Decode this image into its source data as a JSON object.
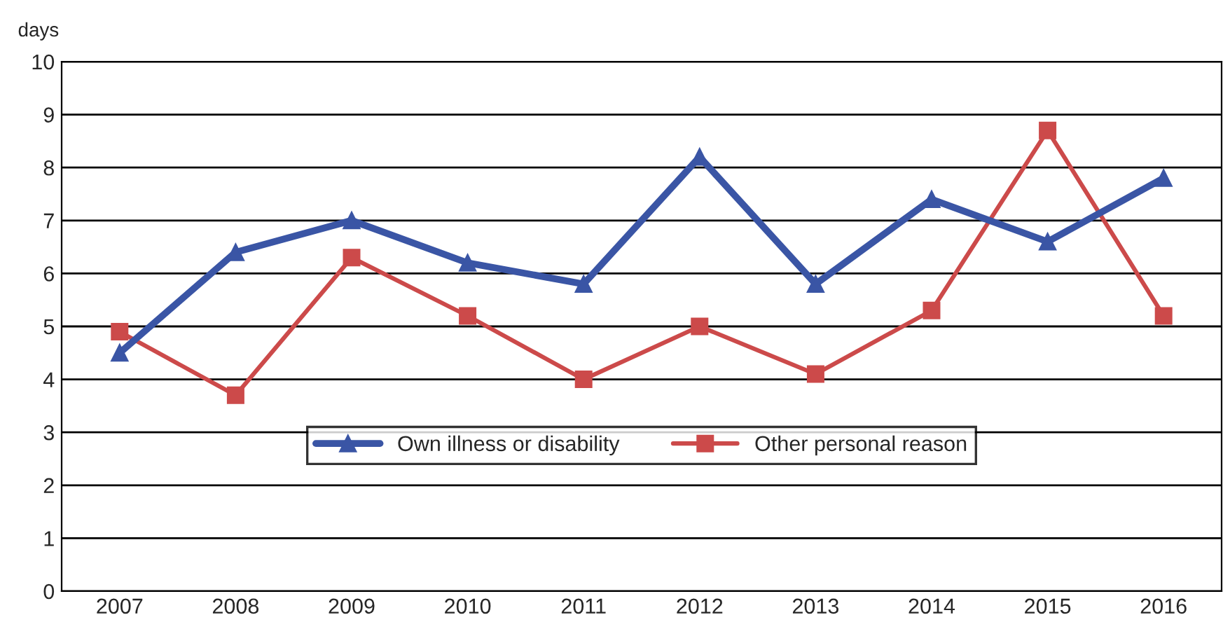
{
  "chart_data": {
    "type": "line",
    "ylabel": "days",
    "categories": [
      "2007",
      "2008",
      "2009",
      "2010",
      "2011",
      "2012",
      "2013",
      "2014",
      "2015",
      "2016"
    ],
    "series": [
      {
        "name": "Own illness or disability",
        "color": "#3a55a5",
        "marker": "triangle",
        "values": [
          4.5,
          6.4,
          7.0,
          6.2,
          5.8,
          8.2,
          5.8,
          7.4,
          6.6,
          7.8
        ]
      },
      {
        "name": "Other personal reason",
        "color": "#cc4a4a",
        "marker": "square",
        "values": [
          4.9,
          3.7,
          6.3,
          5.2,
          4.0,
          5.0,
          4.1,
          5.3,
          8.7,
          5.2
        ]
      }
    ],
    "ylim": [
      0,
      10
    ],
    "yticks": [
      0,
      1,
      2,
      3,
      4,
      5,
      6,
      7,
      8,
      9,
      10
    ],
    "grid": "y",
    "legend": "bottom",
    "line_style": "solid"
  }
}
